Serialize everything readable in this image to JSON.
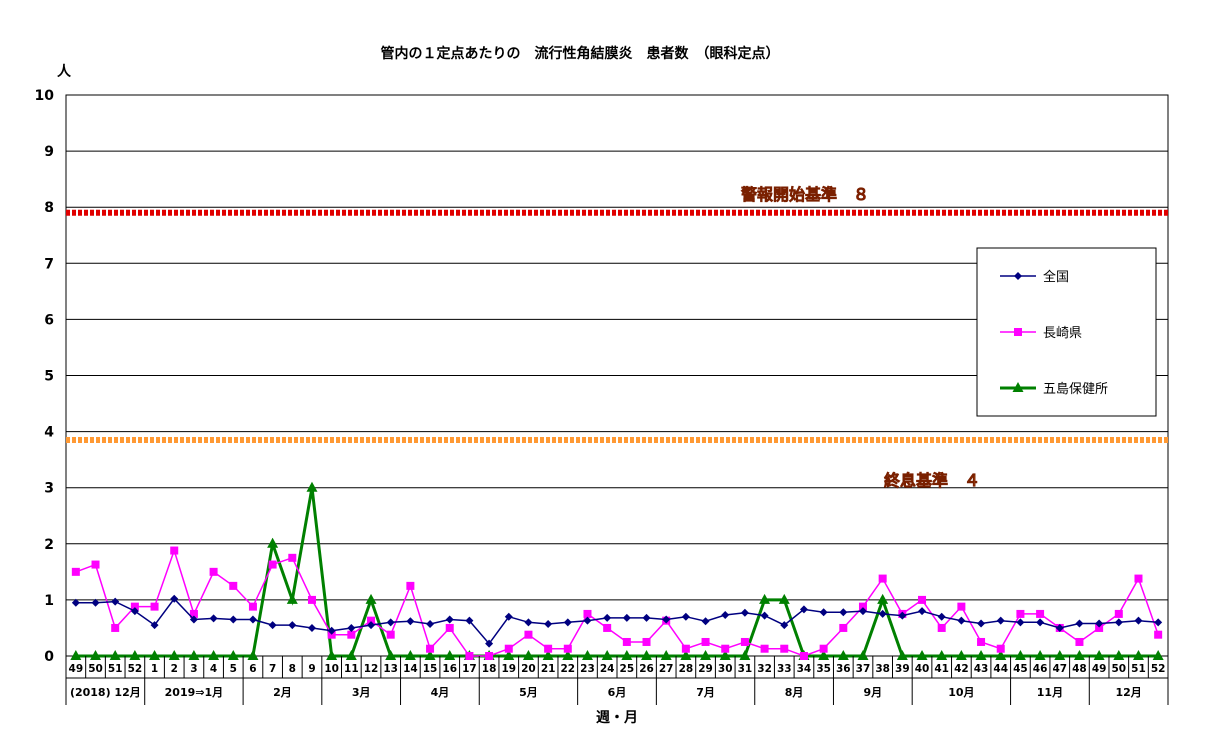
{
  "chart_data": {
    "type": "line",
    "title": "管内の１定点あたりの　流行性角結膜炎　患者数　（眼科定点）",
    "ylabel": "人",
    "xlabel": "週・月",
    "ylim": [
      0,
      10
    ],
    "yticks": [
      "0",
      "1",
      "2",
      "3",
      "4",
      "5",
      "6",
      "7",
      "8",
      "9",
      "10"
    ],
    "grid": true,
    "legend_position": "right",
    "weeks": [
      "49",
      "50",
      "51",
      "52",
      "1",
      "2",
      "3",
      "4",
      "5",
      "6",
      "7",
      "8",
      "9",
      "10",
      "11",
      "12",
      "13",
      "14",
      "15",
      "16",
      "17",
      "18",
      "19",
      "20",
      "21",
      "22",
      "23",
      "24",
      "25",
      "26",
      "27",
      "28",
      "29",
      "30",
      "31",
      "32",
      "33",
      "34",
      "35",
      "36",
      "37",
      "38",
      "39",
      "40",
      "41",
      "42",
      "43",
      "44",
      "45",
      "46",
      "47",
      "48",
      "49",
      "50",
      "51",
      "52"
    ],
    "months": [
      {
        "label": "(2018) 12月",
        "start": 0,
        "end": 4
      },
      {
        "label": "2019⇒1月",
        "start": 4,
        "end": 9
      },
      {
        "label": "2月",
        "start": 9,
        "end": 13
      },
      {
        "label": "3月",
        "start": 13,
        "end": 17
      },
      {
        "label": "4月",
        "start": 17,
        "end": 21
      },
      {
        "label": "5月",
        "start": 21,
        "end": 26
      },
      {
        "label": "6月",
        "start": 26,
        "end": 30
      },
      {
        "label": "7月",
        "start": 30,
        "end": 35
      },
      {
        "label": "8月",
        "start": 35,
        "end": 39
      },
      {
        "label": "9月",
        "start": 39,
        "end": 43
      },
      {
        "label": "10月",
        "start": 43,
        "end": 48
      },
      {
        "label": "11月",
        "start": 48,
        "end": 52
      },
      {
        "label": "12月",
        "start": 52,
        "end": 56
      }
    ],
    "series": [
      {
        "name": "全国",
        "color": "#000080",
        "marker": "diamond",
        "values": [
          0.95,
          0.95,
          0.97,
          0.8,
          0.55,
          1.02,
          0.65,
          0.67,
          0.65,
          0.65,
          0.55,
          0.55,
          0.5,
          0.45,
          0.5,
          0.55,
          0.6,
          0.62,
          0.57,
          0.65,
          0.63,
          0.22,
          0.7,
          0.6,
          0.57,
          0.6,
          0.63,
          0.68,
          0.68,
          0.68,
          0.65,
          0.7,
          0.62,
          0.73,
          0.77,
          0.72,
          0.55,
          0.83,
          0.78,
          0.78,
          0.8,
          0.75,
          0.72,
          0.8,
          0.7,
          0.63,
          0.58,
          0.63,
          0.6,
          0.6,
          0.5,
          0.58,
          0.58,
          0.6,
          0.63,
          0.6
        ]
      },
      {
        "name": "長崎県",
        "color": "#ff00ff",
        "marker": "square",
        "values": [
          1.5,
          1.63,
          0.5,
          0.88,
          0.88,
          1.88,
          0.75,
          1.5,
          1.25,
          0.88,
          1.63,
          1.75,
          1.0,
          0.38,
          0.38,
          0.63,
          0.38,
          1.25,
          0.13,
          0.5,
          0.0,
          0.0,
          0.13,
          0.38,
          0.13,
          0.13,
          0.75,
          0.5,
          0.25,
          0.25,
          0.63,
          0.13,
          0.25,
          0.13,
          0.25,
          0.13,
          0.13,
          0.0,
          0.13,
          0.5,
          0.88,
          1.38,
          0.75,
          1.0,
          0.5,
          0.88,
          0.25,
          0.13,
          0.75,
          0.75,
          0.5,
          0.25,
          0.5,
          0.75,
          1.38,
          0.38
        ]
      },
      {
        "name": "五島保健所",
        "color": "#008000",
        "marker": "triangle",
        "values": [
          0,
          0,
          0,
          0,
          0,
          0,
          0,
          0,
          0,
          0,
          2,
          1,
          3,
          0,
          0,
          1,
          0,
          0,
          0,
          0,
          0,
          0,
          0,
          0,
          0,
          0,
          0,
          0,
          0,
          0,
          0,
          0,
          0,
          0,
          0,
          1,
          1,
          0,
          0,
          0,
          0,
          1,
          0,
          0,
          0,
          0,
          0,
          0,
          0,
          0,
          0,
          0,
          0,
          0,
          0,
          0
        ]
      }
    ],
    "reference_lines": [
      {
        "label": "警報開始基準　８",
        "value": 7.9,
        "color": "#e00000"
      },
      {
        "label": "終息基準　４",
        "value": 3.85,
        "color": "#ff9933"
      }
    ]
  }
}
